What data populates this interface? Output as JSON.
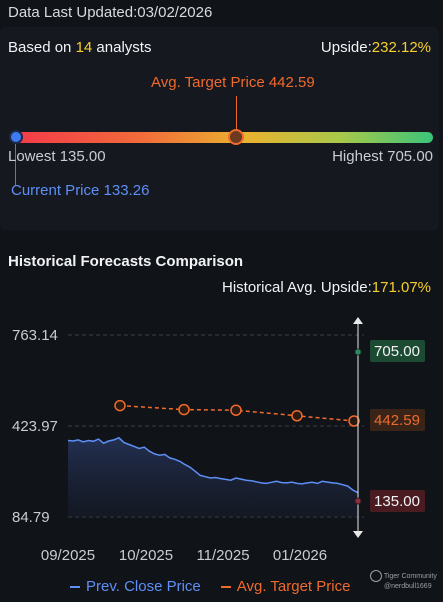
{
  "header": {
    "updated": "Data Last Updated:03/02/2026"
  },
  "summary": {
    "based_prefix": "Based on ",
    "analysts_count": "14",
    "based_suffix": " analysts",
    "upside_label": "Upside:",
    "upside_value": "232.12%"
  },
  "target_bar": {
    "avg_target": "Avg. Target Price 442.59",
    "lowest": "Lowest 135.00",
    "highest": "Highest 705.00",
    "current": "Current Price 133.26",
    "colors": {
      "avg": "#f06a2c",
      "current": "#3e7bf5"
    }
  },
  "historical": {
    "title": "Historical Forecasts Comparison",
    "upside_label": "Historical Avg. Upside:",
    "upside_value": "171.07%"
  },
  "chart_data": {
    "type": "line",
    "y_ticks": [
      "763.14",
      "423.97",
      "84.79"
    ],
    "ylim": [
      84.79,
      763.14
    ],
    "x_ticks": [
      "09/2025",
      "10/2025",
      "11/2025",
      "01/2026"
    ],
    "series": [
      {
        "name": "Prev. Close Price",
        "color": "#5e8ff7",
        "values": [
          370,
          368,
          372,
          365,
          370,
          367,
          375,
          360,
          368,
          372,
          380,
          362,
          355,
          348,
          340,
          345,
          330,
          320,
          315,
          318,
          305,
          300,
          292,
          280,
          270,
          255,
          240,
          235,
          230,
          232,
          228,
          225,
          222,
          230,
          226,
          222,
          220,
          216,
          212,
          210,
          214,
          218,
          213,
          212,
          215,
          210,
          208,
          212,
          214,
          210,
          218,
          215,
          212,
          210,
          205,
          200,
          185,
          175
        ]
      },
      {
        "name": "Avg. Target Price",
        "color": "#f06a2c",
        "points": [
          {
            "x": "10/2025",
            "y": 500
          },
          {
            "x": "11/2025",
            "y": 485
          },
          {
            "x": "11/2025b",
            "y": 483
          },
          {
            "x": "12/2025",
            "y": 462
          },
          {
            "x": "03/2026",
            "y": 442.59
          }
        ]
      }
    ],
    "markers": {
      "high": "705.00",
      "avg": "442.59",
      "low": "135.00"
    }
  },
  "legend": {
    "prev_close": "Prev. Close Price",
    "avg_target": "Avg. Target Price"
  },
  "watermark": {
    "brand": "Tiger Community",
    "user": "@nerdbull1669"
  }
}
